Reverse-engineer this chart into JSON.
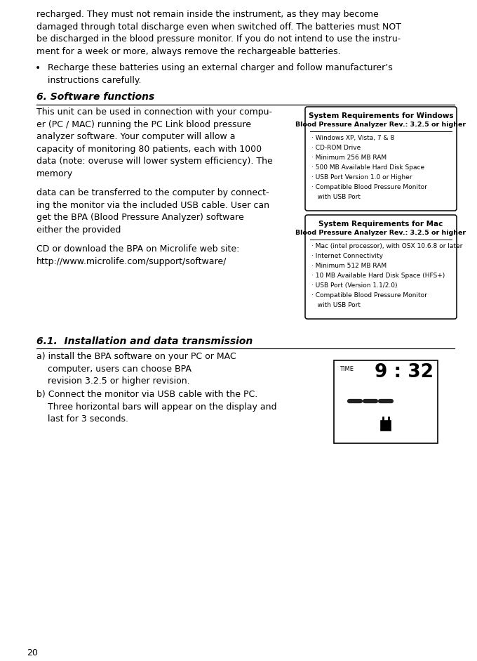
{
  "bg_color": "#ffffff",
  "page_number": "20",
  "top_para_lines": [
    "recharged. They must not remain inside the instrument, as they may become",
    "damaged through total discharge even when switched off. The batteries must NOT",
    "be discharged in the blood pressure monitor. If you do not intend to use the instru-",
    "ment for a week or more, always remove the rechargeable batteries."
  ],
  "bullet_lines": [
    "Recharge these batteries using an external charger and follow manufacturer’s",
    "instructions carefully."
  ],
  "section_title": "6. Software functions",
  "left_col_lines_1": [
    "This unit can be used in connection with your compu-",
    "er (PC / MAC) running the PC Link blood pressure",
    "analyzer software. Your computer will allow a",
    "capacity of monitoring 80 patients, each with 1000",
    "data (note: overuse will lower system efficiency). The",
    "memory"
  ],
  "left_col_lines_2": [
    "data can be transferred to the computer by connect-",
    "ing the monitor via the included USB cable. User can",
    "get the BPA (Blood Pressure Analyzer) software",
    "either the provided"
  ],
  "left_col_line_3": "CD or download the BPA on Microlife web site:",
  "left_col_line_4": "http://www.microlife.com/support/software/",
  "win_box_title1": "System Requirements for Windows",
  "win_box_title2": "Blood Pressure Analyzer Rev.: 3.2.5 or higher",
  "win_box_items": [
    "· Windows XP, Vista, 7 & 8",
    "· CD-ROM Drive",
    "· Minimum 256 MB RAM",
    "· 500 MB Available Hard Disk Space",
    "· USB Port Version 1.0 or Higher",
    "· Compatible Blood Pressure Monitor",
    "   with USB Port"
  ],
  "mac_box_title1": "System Requirements for Mac",
  "mac_box_title2": "Blood Pressure Analyzer Rev.: 3.2.5 or higher",
  "mac_box_items": [
    "· Mac (intel processor), with OSX 10.6.8 or later",
    "· Internet Connectivity",
    "· Minimum 512 MB RAM",
    "· 10 MB Available Hard Disk Space (HFS+)",
    "· USB Port (Version 1.1/2.0)",
    "· Compatible Blood Pressure Monitor",
    "   with USB Port"
  ],
  "subsection_title": "6.1.  Installation and data transmission",
  "step_a_lines": [
    "a) install the BPA software on your PC or MAC",
    "    computer, users can choose BPA",
    "    revision 3.2.5 or higher revision."
  ],
  "step_b_lines": [
    "b) Connect the monitor via USB cable with the PC.",
    "    Three horizontal bars will appear on the display and",
    "    last for 3 seconds."
  ],
  "display_label": "TIME",
  "display_time": "9 : 32"
}
